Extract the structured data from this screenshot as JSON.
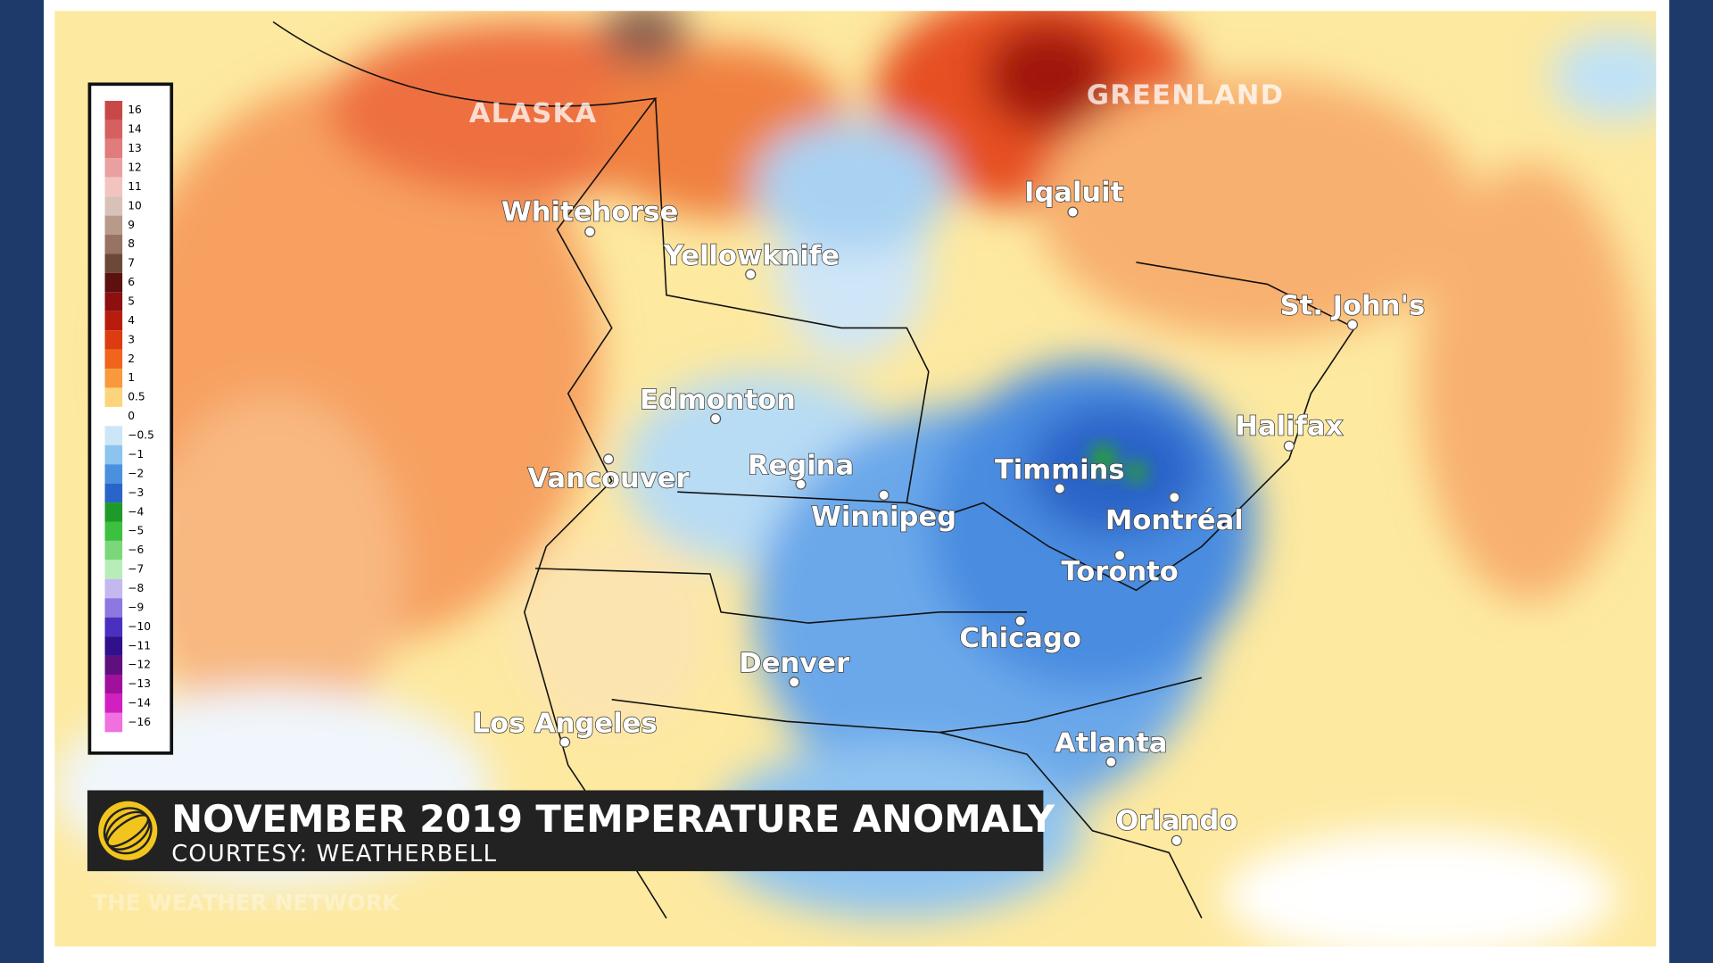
{
  "title": "NOVEMBER 2019  TEMPERATURE ANOMALY",
  "courtesy": "COURTESY: WEATHERBELL",
  "watermark": "THE WEATHER NETWORK",
  "regions": [
    "ALASKA",
    "GREENLAND"
  ],
  "cities": [
    "Whitehorse",
    "Yellowknife",
    "Iqaluit",
    "St. John's",
    "Edmonton",
    "Halifax",
    "Vancouver",
    "Regina",
    "Timmins",
    "Winnipeg",
    "Montréal",
    "Toronto",
    "Chicago",
    "Denver",
    "Los Angeles",
    "Atlanta",
    "Orlando"
  ],
  "legend": [
    {
      "label": "16",
      "color": "#c84848"
    },
    {
      "label": "14",
      "color": "#d66060"
    },
    {
      "label": "13",
      "color": "#e07c7c"
    },
    {
      "label": "12",
      "color": "#eaa0a0"
    },
    {
      "label": "11",
      "color": "#f2c4c0"
    },
    {
      "label": "10",
      "color": "#d8c2b8"
    },
    {
      "label": "9",
      "color": "#b89a8a"
    },
    {
      "label": "8",
      "color": "#987262"
    },
    {
      "label": "7",
      "color": "#6c4838"
    },
    {
      "label": "6",
      "color": "#5c1010"
    },
    {
      "label": "5",
      "color": "#8c1010"
    },
    {
      "label": "4",
      "color": "#b81c0c"
    },
    {
      "label": "3",
      "color": "#dc3c10"
    },
    {
      "label": "2",
      "color": "#f0641c"
    },
    {
      "label": "1",
      "color": "#f89a3c"
    },
    {
      "label": "0.5",
      "color": "#fcd47c"
    },
    {
      "label": "0",
      "color": "#ffffff"
    },
    {
      "label": "−0.5",
      "color": "#cce6f8"
    },
    {
      "label": "−1",
      "color": "#8cc4f0"
    },
    {
      "label": "−2",
      "color": "#4a90e0"
    },
    {
      "label": "−3",
      "color": "#2a64c8"
    },
    {
      "label": "−4",
      "color": "#1e9a2a"
    },
    {
      "label": "−5",
      "color": "#3cc040"
    },
    {
      "label": "−6",
      "color": "#7ad87a"
    },
    {
      "label": "−7",
      "color": "#b8ecb8"
    },
    {
      "label": "−8",
      "color": "#c4b8f0"
    },
    {
      "label": "−9",
      "color": "#8c78e0"
    },
    {
      "label": "−10",
      "color": "#4a30c0"
    },
    {
      "label": "−11",
      "color": "#30108c"
    },
    {
      "label": "−12",
      "color": "#60107c"
    },
    {
      "label": "−13",
      "color": "#a0109c"
    },
    {
      "label": "−14",
      "color": "#d020c0"
    },
    {
      "label": "−16",
      "color": "#f070e0"
    }
  ]
}
